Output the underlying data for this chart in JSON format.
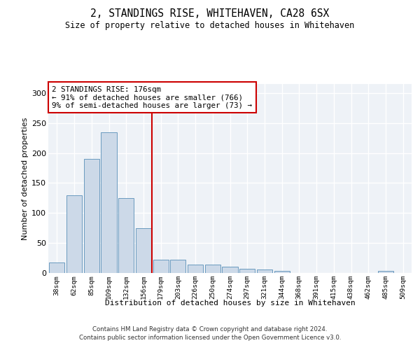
{
  "title": "2, STANDINGS RISE, WHITEHAVEN, CA28 6SX",
  "subtitle": "Size of property relative to detached houses in Whitehaven",
  "xlabel": "Distribution of detached houses by size in Whitehaven",
  "ylabel": "Number of detached properties",
  "bar_color": "#ccd9e8",
  "bar_edge_color": "#6a9abf",
  "categories": [
    "38sqm",
    "62sqm",
    "85sqm",
    "109sqm",
    "132sqm",
    "156sqm",
    "179sqm",
    "203sqm",
    "226sqm",
    "250sqm",
    "274sqm",
    "297sqm",
    "321sqm",
    "344sqm",
    "368sqm",
    "391sqm",
    "415sqm",
    "438sqm",
    "462sqm",
    "485sqm",
    "509sqm"
  ],
  "values": [
    18,
    130,
    190,
    235,
    125,
    75,
    22,
    22,
    14,
    14,
    10,
    7,
    6,
    3,
    0,
    0,
    0,
    0,
    0,
    3,
    0
  ],
  "ylim": [
    0,
    315
  ],
  "yticks": [
    0,
    50,
    100,
    150,
    200,
    250,
    300
  ],
  "vline_x": 6,
  "annotation_text": "2 STANDINGS RISE: 176sqm\n← 91% of detached houses are smaller (766)\n9% of semi-detached houses are larger (73) →",
  "annotation_box_color": "#ffffff",
  "annotation_box_edge": "#cc0000",
  "vline_color": "#cc0000",
  "footer_line1": "Contains HM Land Registry data © Crown copyright and database right 2024.",
  "footer_line2": "Contains public sector information licensed under the Open Government Licence v3.0.",
  "background_color": "#eef2f7",
  "grid_color": "#ffffff",
  "fig_bg": "#ffffff"
}
